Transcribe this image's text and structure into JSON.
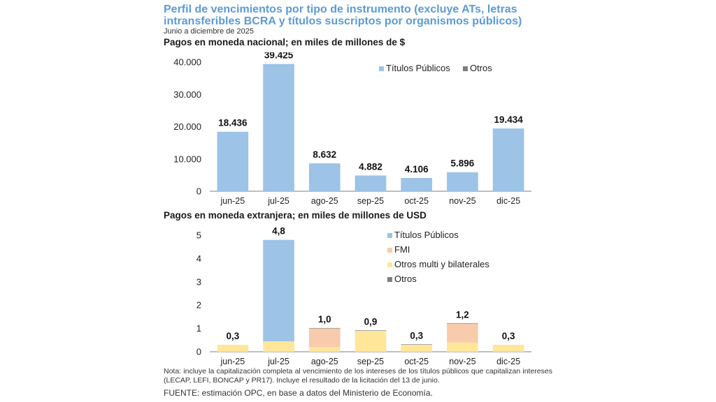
{
  "header": {
    "title": "Perfil de vencimientos por tipo de instrumento (excluye ATs, letras intransferibles BCRA y títulos suscriptos por organismos públicos)",
    "subtitle": "Junio a diciembre de 2025"
  },
  "colors": {
    "titulos_publicos": "#9dc3e6",
    "otros": "#7f7f7f",
    "fmi": "#f8cbad",
    "otros_multi": "#ffe699",
    "title": "#5b9bd5"
  },
  "chart_data": [
    {
      "type": "bar",
      "title": "Pagos en moneda nacional; en miles de millones de $",
      "categories": [
        "jun-25",
        "jul-25",
        "ago-25",
        "sep-25",
        "oct-25",
        "nov-25",
        "dic-25"
      ],
      "series": [
        {
          "name": "Títulos Públicos",
          "color": "#9dc3e6",
          "values": [
            18436,
            39425,
            8632,
            4882,
            4106,
            5896,
            19434
          ]
        },
        {
          "name": "Otros",
          "color": "#7f7f7f",
          "values": [
            0,
            0,
            0,
            0,
            0,
            0,
            0
          ]
        }
      ],
      "totals_labels": [
        "18.436",
        "39.425",
        "8.632",
        "4.882",
        "4.106",
        "5.896",
        "19.434"
      ],
      "y_ticks": [
        "0",
        "10.000",
        "20.000",
        "30.000",
        "40.000"
      ],
      "ylim": [
        0,
        40000
      ],
      "legend_position": "top-right",
      "grid": false
    },
    {
      "type": "bar",
      "stacked": true,
      "title": "Pagos en moneda extranjera; en miles de millones de USD",
      "categories": [
        "jun-25",
        "jul-25",
        "ago-25",
        "sep-25",
        "oct-25",
        "nov-25",
        "dic-25"
      ],
      "series": [
        {
          "name": "Otros multi y bilaterales",
          "color": "#ffe699",
          "values": [
            0.3,
            0.45,
            0.2,
            0.9,
            0.3,
            0.4,
            0.3
          ]
        },
        {
          "name": "FMI",
          "color": "#f8cbad",
          "values": [
            0,
            0,
            0.8,
            0,
            0,
            0.8,
            0
          ]
        },
        {
          "name": "Otros",
          "color": "#7f7f7f",
          "values": [
            0,
            0,
            0.02,
            0.02,
            0.02,
            0.02,
            0
          ]
        },
        {
          "name": "Títulos Públicos",
          "color": "#9dc3e6",
          "values": [
            0,
            4.35,
            0,
            0,
            0,
            0,
            0
          ]
        }
      ],
      "legend_order": [
        "Títulos Públicos",
        "FMI",
        "Otros multi y bilaterales",
        "Otros"
      ],
      "totals_labels": [
        "0,3",
        "4,8",
        "1,0",
        "0,9",
        "0,3",
        "1,2",
        "0,3"
      ],
      "y_ticks": [
        "0",
        "1",
        "2",
        "3",
        "4",
        "5"
      ],
      "ylim": [
        0,
        5
      ],
      "legend_position": "top-right",
      "grid": false
    }
  ],
  "footer": {
    "note": "Nota: incluye la capitalización completa al vencimiento de los intereses de los títulos públicos que capitalizan intereses (LECAP, LEFI, BONCAP y PR17). Incluye el resultado de la licitación del 13 de junio.",
    "source": "FUENTE: estimación OPC, en base a datos del Ministerio de Economía."
  }
}
